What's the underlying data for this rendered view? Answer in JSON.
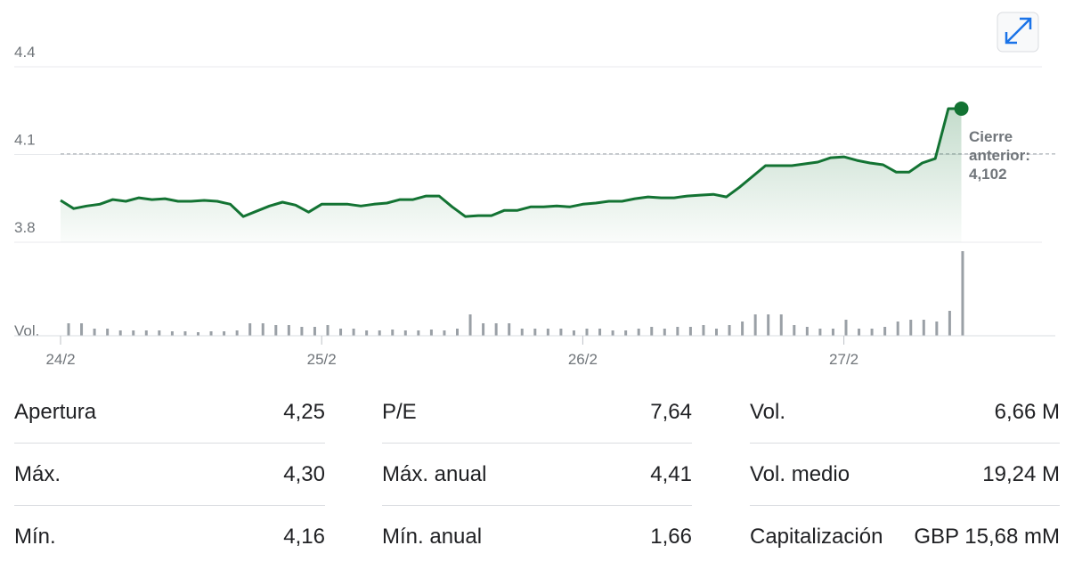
{
  "chart_data": {
    "type": "line",
    "values": [
      3.943,
      3.915,
      3.924,
      3.93,
      3.946,
      3.94,
      3.952,
      3.946,
      3.949,
      3.94,
      3.94,
      3.943,
      3.94,
      3.93,
      3.888,
      3.906,
      3.924,
      3.937,
      3.927,
      3.903,
      3.93,
      3.93,
      3.93,
      3.924,
      3.93,
      3.934,
      3.946,
      3.946,
      3.958,
      3.958,
      3.921,
      3.888,
      3.891,
      3.891,
      3.909,
      3.909,
      3.921,
      3.921,
      3.924,
      3.921,
      3.93,
      3.934,
      3.94,
      3.94,
      3.949,
      3.955,
      3.952,
      3.952,
      3.958,
      3.961,
      3.964,
      3.955,
      3.988,
      4.025,
      4.062,
      4.062,
      4.062,
      4.068,
      4.074,
      4.089,
      4.092,
      4.08,
      4.071,
      4.065,
      4.04,
      4.04,
      4.071,
      4.086,
      4.257,
      4.257
    ],
    "color": "#137333",
    "ylim": [
      3.8,
      4.4
    ],
    "yticks": [
      3.8,
      4.1,
      4.4
    ],
    "xticks": [
      {
        "value": 0,
        "label": "24/2"
      },
      {
        "value": 20,
        "label": "25/2"
      },
      {
        "value": 40,
        "label": "26/2"
      },
      {
        "value": 60,
        "label": "27/2"
      }
    ],
    "previous_close": 4.102,
    "previous_close_label": "4,102",
    "previous_close_title": "Cierre anterior:",
    "volume": {
      "label": "Vol.",
      "color": "#9aa0a6",
      "values": [
        14,
        14,
        8,
        8,
        6,
        6,
        6,
        6,
        5,
        5,
        4,
        5,
        5,
        6,
        14,
        14,
        12,
        12,
        10,
        10,
        12,
        8,
        8,
        6,
        6,
        7,
        6,
        6,
        7,
        6,
        8,
        24,
        14,
        14,
        14,
        8,
        8,
        8,
        8,
        6,
        8,
        8,
        6,
        6,
        8,
        10,
        8,
        10,
        10,
        12,
        8,
        12,
        16,
        24,
        24,
        24,
        12,
        10,
        8,
        8,
        18,
        8,
        8,
        10,
        16,
        18,
        18,
        16,
        28,
        95
      ]
    }
  },
  "stats": [
    [
      {
        "label": "Apertura",
        "value": "4,25"
      },
      {
        "label": "Máx.",
        "value": "4,30"
      },
      {
        "label": "Mín.",
        "value": "4,16"
      }
    ],
    [
      {
        "label": "P/E",
        "value": "7,64"
      },
      {
        "label": "Máx. anual",
        "value": "4,41"
      },
      {
        "label": "Mín. anual",
        "value": "1,66"
      }
    ],
    [
      {
        "label": "Vol.",
        "value": "6,66 M"
      },
      {
        "label": "Vol. medio",
        "value": "19,24 M"
      },
      {
        "label": "Capitalización",
        "value": "GBP 15,68 mM"
      }
    ]
  ]
}
